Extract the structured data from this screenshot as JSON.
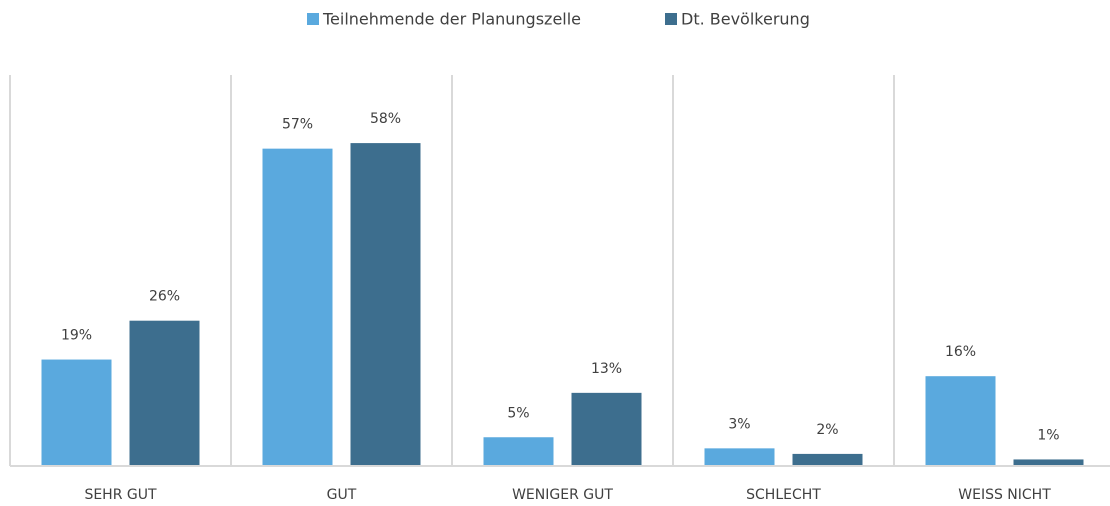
{
  "chart_data": {
    "type": "bar",
    "categories": [
      "SEHR GUT",
      "GUT",
      "WENIGER GUT",
      "SCHLECHT",
      "WEISS NICHT"
    ],
    "series": [
      {
        "name": "Teilnehmende der Planungszelle",
        "color": "#5aa9de",
        "values": [
          19,
          57,
          5,
          3,
          16
        ],
        "value_labels": [
          "19%",
          "57%",
          "5%",
          "3%",
          "16%"
        ]
      },
      {
        "name": "Dt. Bevölkerung",
        "color": "#3d6e8e",
        "values": [
          26,
          58,
          13,
          2,
          1
        ],
        "value_labels": [
          "26%",
          "58%",
          "13%",
          "2%",
          "1%"
        ]
      }
    ],
    "legend": "top"
  }
}
